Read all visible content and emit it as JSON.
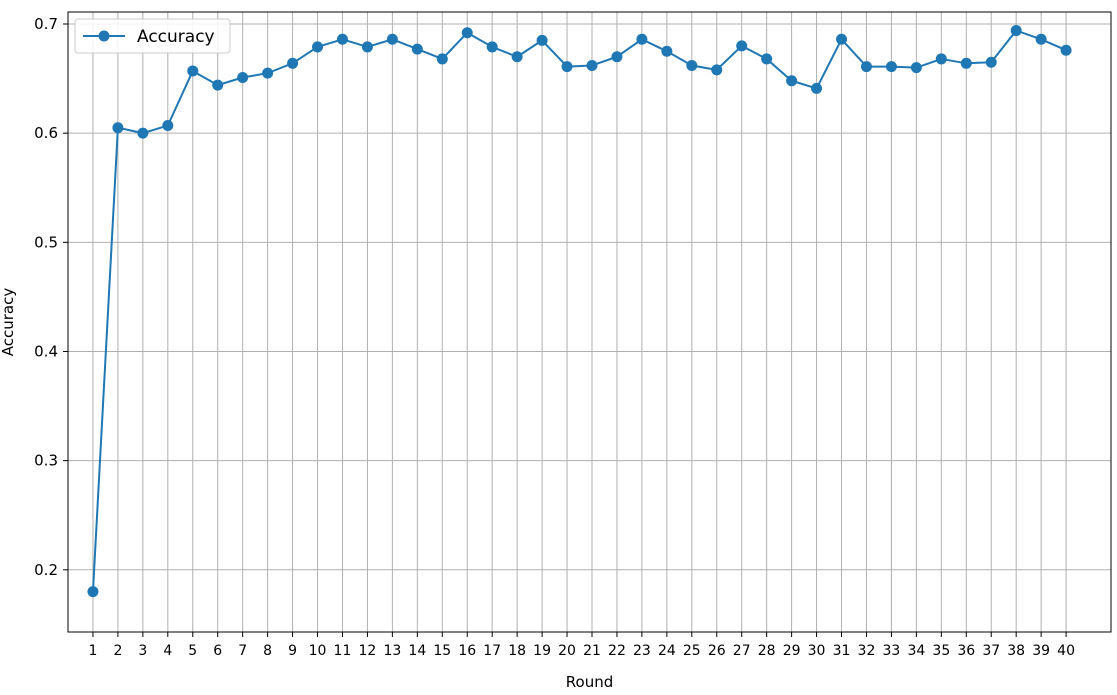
{
  "chart_data": {
    "type": "line",
    "title": "",
    "xlabel": "Round",
    "ylabel": "Accuracy",
    "x": [
      1,
      2,
      3,
      4,
      5,
      6,
      7,
      8,
      9,
      10,
      11,
      12,
      13,
      14,
      15,
      16,
      17,
      18,
      19,
      20,
      21,
      22,
      23,
      24,
      25,
      26,
      27,
      28,
      29,
      30,
      31,
      32,
      33,
      34,
      35,
      36,
      37,
      38,
      39,
      40
    ],
    "ylim": [
      0.143,
      0.711
    ],
    "yticks": [
      0.2,
      0.3,
      0.4,
      0.5,
      0.6,
      0.7
    ],
    "ytick_labels": [
      "0.2",
      "0.3",
      "0.4",
      "0.5",
      "0.6",
      "0.7"
    ],
    "grid": true,
    "legend_position": "top-left",
    "colors": {
      "line": "#1f77b4",
      "grid": "#b0b0b0",
      "axis": "#000000"
    },
    "series": [
      {
        "name": "Accuracy",
        "marker": "circle",
        "values": [
          0.18,
          0.605,
          0.6,
          0.607,
          0.657,
          0.644,
          0.651,
          0.655,
          0.664,
          0.679,
          0.686,
          0.679,
          0.686,
          0.677,
          0.668,
          0.692,
          0.679,
          0.67,
          0.685,
          0.661,
          0.662,
          0.67,
          0.686,
          0.675,
          0.662,
          0.658,
          0.68,
          0.668,
          0.648,
          0.641,
          0.686,
          0.661,
          0.661,
          0.66,
          0.668,
          0.664,
          0.665,
          0.694,
          0.686,
          0.676
        ]
      }
    ]
  }
}
